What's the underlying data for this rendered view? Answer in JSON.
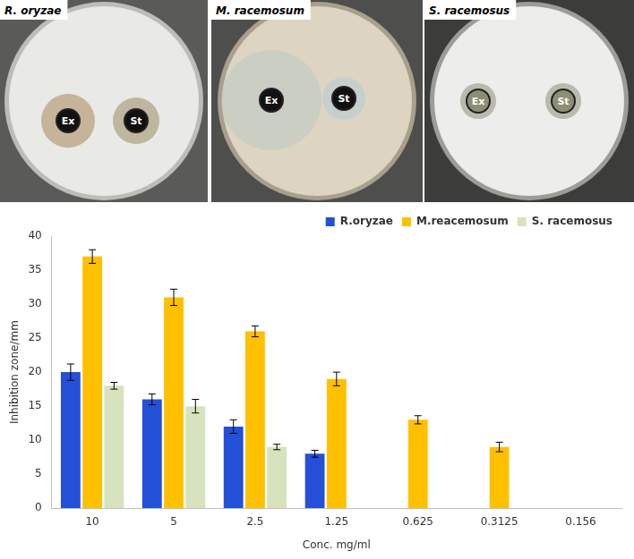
{
  "panels": [
    {
      "title": "R. oryzae",
      "wells": [
        "Ex",
        "St"
      ]
    },
    {
      "title": "M. racemosum",
      "wells": [
        "Ex",
        "St"
      ]
    },
    {
      "title": "S. racemosus",
      "wells": [
        "Ex",
        "St"
      ]
    }
  ],
  "chart_data": {
    "type": "bar",
    "categories": [
      "10",
      "5",
      "2.5",
      "1.25",
      "0.625",
      "0.3125",
      "0.156"
    ],
    "x_label": "Conc. mg/ml",
    "y_label": "Inhibition zone/mm",
    "ylim": [
      0,
      40
    ],
    "yticks": [
      0,
      5,
      10,
      15,
      20,
      25,
      30,
      35,
      40
    ],
    "grid": false,
    "legend": "upper right",
    "series": [
      {
        "name": "R.oryzae",
        "color": "#2450d8",
        "values": [
          20,
          16,
          12,
          8,
          null,
          null,
          null
        ],
        "errors": [
          1.2,
          0.8,
          1.0,
          0.5,
          null,
          null,
          null
        ]
      },
      {
        "name": "M.reacemosum",
        "color": "#ffc000",
        "values": [
          37,
          31,
          26,
          19,
          13,
          9,
          null
        ],
        "errors": [
          1.0,
          1.2,
          0.8,
          1.0,
          0.6,
          0.7,
          null
        ]
      },
      {
        "name": "S. racemosus",
        "color": "#d6e3bc",
        "values": [
          18,
          15,
          9,
          null,
          null,
          null,
          null
        ],
        "errors": [
          0.5,
          1.0,
          0.4,
          null,
          null,
          null,
          null
        ]
      }
    ]
  }
}
